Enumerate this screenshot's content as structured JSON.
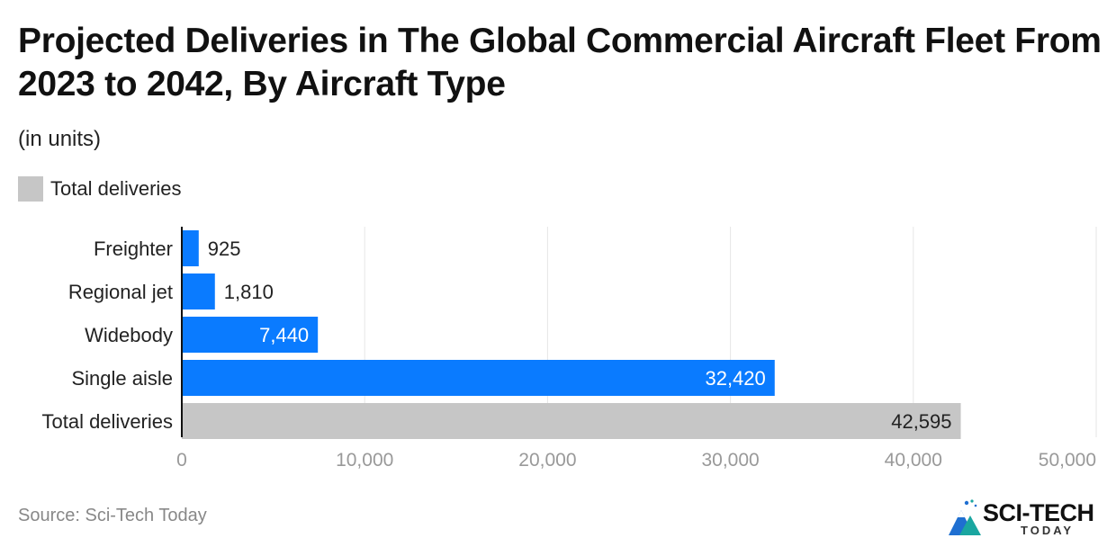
{
  "header": {
    "title": "Projected Deliveries in The Global Commercial Aircraft Fleet From 2023 to 2042, By Aircraft Type",
    "subtitle": "(in units)"
  },
  "legend": {
    "label": "Total deliveries",
    "color": "#c6c6c6"
  },
  "footer": {
    "source": "Source: Sci-Tech Today",
    "logo_text": "SCI-TECH",
    "logo_sub": "TODAY"
  },
  "colors": {
    "bar": "#0a7bff",
    "total_bar": "#c6c6c6",
    "grid": "#e6e6e6",
    "axis": "#111111",
    "tick": "#999999"
  },
  "chart_data": {
    "type": "bar",
    "orientation": "horizontal",
    "title": "Projected Deliveries in The Global Commercial Aircraft Fleet From 2023 to 2042, By Aircraft Type",
    "subtitle": "(in units)",
    "categories": [
      "Freighter",
      "Regional jet",
      "Widebody",
      "Single aisle",
      "Total deliveries"
    ],
    "values": [
      925,
      1810,
      7440,
      32420,
      42595
    ],
    "labels": [
      "925",
      "1,810",
      "7,440",
      "32,420",
      "42,595"
    ],
    "xlim": [
      0,
      50000
    ],
    "xticks": [
      "0",
      "10,000",
      "20,000",
      "30,000",
      "40,000",
      "50,000"
    ],
    "xlabel": "",
    "ylabel": "",
    "grid": true,
    "legend": [
      "Total deliveries"
    ],
    "legend_position": "top-left"
  }
}
